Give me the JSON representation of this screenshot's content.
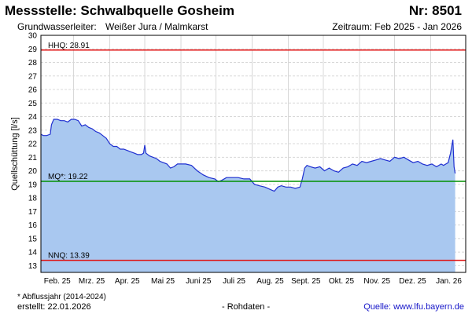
{
  "header": {
    "title": "Messstelle: Schwalbquelle Gosheim",
    "station_no": "Nr: 8501",
    "aquifer_label": "Grundwasserleiter:",
    "aquifer_value": "Weißer Jura / Malmkarst",
    "period": "Zeitraum: Feb 2025 - Jan 2026"
  },
  "footer": {
    "footnote": "* Abflussjahr (2014-2024)",
    "created": "erstellt:   22.01.2026",
    "raw_data": "- Rohdaten -",
    "source": "Quelle:  www.lfu.bayern.de"
  },
  "colors": {
    "fill": "#a9c8f0",
    "line": "#1f2fd0",
    "hhq": "#e01010",
    "mq": "#009000",
    "nnq": "#e01010",
    "grid": "#d8d8d8"
  },
  "chart_data": {
    "type": "area",
    "title": "Messstelle: Schwalbquelle Gosheim",
    "ylabel": "Quellschüttung [l/s]",
    "ylim": [
      12.5,
      30
    ],
    "yticks": [
      13,
      14,
      15,
      16,
      17,
      18,
      19,
      20,
      21,
      22,
      23,
      24,
      25,
      26,
      27,
      28,
      29,
      30
    ],
    "xlim": [
      "2025-02-01",
      "2026-01-31"
    ],
    "xtick_labels": [
      "Feb. 25",
      "Mrz. 25",
      "Apr. 25",
      "Mai 25",
      "Juni 25",
      "Juli 25",
      "Aug. 25",
      "Sept. 25",
      "Okt. 25",
      "Nov. 25",
      "Dez. 25",
      "Jan. 26"
    ],
    "grid": true,
    "reference_lines": [
      {
        "label": "HHQ: 28.91",
        "value": 28.91
      },
      {
        "label": "MQ*: 19.22",
        "value": 19.22
      },
      {
        "label": "NNQ: 13.39",
        "value": 13.39
      }
    ],
    "series": [
      {
        "x": [
          "2025-02-01",
          "2025-02-03",
          "2025-02-06",
          "2025-02-09",
          "2025-02-10",
          "2025-02-12",
          "2025-02-15",
          "2025-02-18",
          "2025-02-21",
          "2025-02-24",
          "2025-02-27",
          "2025-03-02",
          "2025-03-05",
          "2025-03-08",
          "2025-03-11",
          "2025-03-14",
          "2025-03-17",
          "2025-03-20",
          "2025-03-23",
          "2025-03-26",
          "2025-03-29",
          "2025-04-01",
          "2025-04-04",
          "2025-04-07",
          "2025-04-10",
          "2025-04-13",
          "2025-04-16",
          "2025-04-19",
          "2025-04-22",
          "2025-04-25",
          "2025-04-28",
          "2025-04-30",
          "2025-05-01",
          "2025-05-02",
          "2025-05-05",
          "2025-05-08",
          "2025-05-11",
          "2025-05-14",
          "2025-05-17",
          "2025-05-20",
          "2025-05-23",
          "2025-05-26",
          "2025-05-29",
          "2025-06-01",
          "2025-06-05",
          "2025-06-10",
          "2025-06-15",
          "2025-06-20",
          "2025-06-25",
          "2025-06-30",
          "2025-07-03",
          "2025-07-06",
          "2025-07-10",
          "2025-07-15",
          "2025-07-20",
          "2025-07-25",
          "2025-07-30",
          "2025-08-03",
          "2025-08-07",
          "2025-08-12",
          "2025-08-17",
          "2025-08-20",
          "2025-08-23",
          "2025-08-26",
          "2025-08-30",
          "2025-09-03",
          "2025-09-07",
          "2025-09-11",
          "2025-09-13",
          "2025-09-15",
          "2025-09-17",
          "2025-09-20",
          "2025-09-24",
          "2025-09-28",
          "2025-10-02",
          "2025-10-06",
          "2025-10-10",
          "2025-10-14",
          "2025-10-18",
          "2025-10-22",
          "2025-10-26",
          "2025-10-30",
          "2025-11-03",
          "2025-11-07",
          "2025-11-11",
          "2025-11-15",
          "2025-11-19",
          "2025-11-23",
          "2025-11-27",
          "2025-12-01",
          "2025-12-05",
          "2025-12-09",
          "2025-12-13",
          "2025-12-17",
          "2025-12-21",
          "2025-12-25",
          "2025-12-29",
          "2026-01-02",
          "2026-01-06",
          "2026-01-10",
          "2026-01-12",
          "2026-01-14",
          "2026-01-16",
          "2026-01-18",
          "2026-01-20",
          "2026-01-21",
          "2026-01-22"
        ],
        "y": [
          22.7,
          22.6,
          22.6,
          22.7,
          23.4,
          23.8,
          23.8,
          23.7,
          23.7,
          23.6,
          23.8,
          23.8,
          23.7,
          23.3,
          23.4,
          23.2,
          23.1,
          22.9,
          22.8,
          22.6,
          22.4,
          22.0,
          21.8,
          21.8,
          21.6,
          21.6,
          21.5,
          21.4,
          21.3,
          21.2,
          21.2,
          21.3,
          21.9,
          21.3,
          21.1,
          21.0,
          20.9,
          20.7,
          20.6,
          20.5,
          20.2,
          20.3,
          20.5,
          20.5,
          20.5,
          20.4,
          20.0,
          19.7,
          19.5,
          19.4,
          19.2,
          19.3,
          19.5,
          19.5,
          19.5,
          19.4,
          19.4,
          19.0,
          18.9,
          18.8,
          18.6,
          18.5,
          18.8,
          18.9,
          18.8,
          18.8,
          18.7,
          18.8,
          19.4,
          20.2,
          20.4,
          20.3,
          20.2,
          20.3,
          20.0,
          20.2,
          20.0,
          19.9,
          20.2,
          20.3,
          20.5,
          20.4,
          20.7,
          20.6,
          20.7,
          20.8,
          20.9,
          20.8,
          20.7,
          21.0,
          20.9,
          21.0,
          20.8,
          20.6,
          20.7,
          20.5,
          20.4,
          20.5,
          20.3,
          20.5,
          20.4,
          20.5,
          20.6,
          21.3,
          22.3,
          20.3,
          19.8
        ]
      }
    ]
  }
}
